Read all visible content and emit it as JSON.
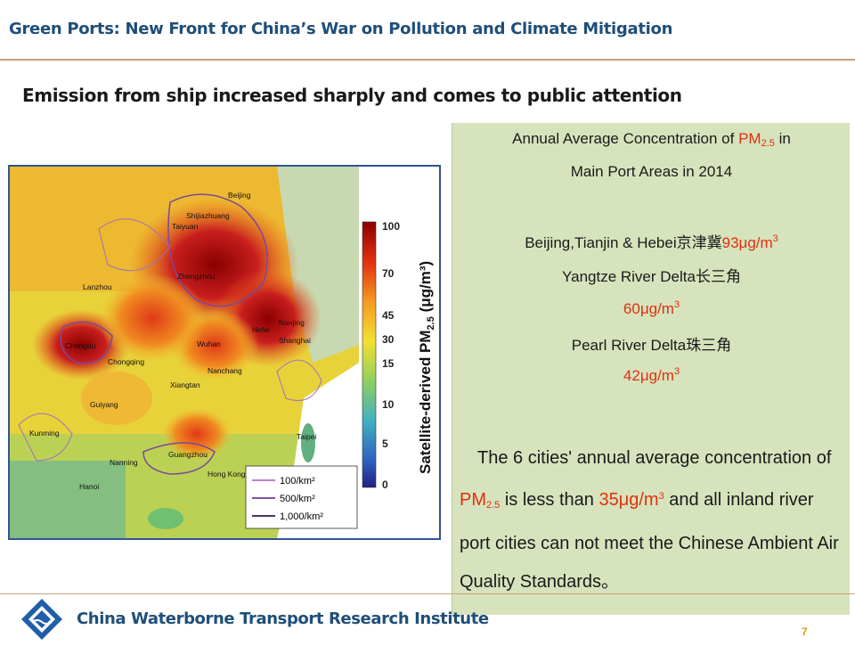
{
  "header": {
    "title": "Green Ports: New Front for China’s War on Pollution and Climate Mitigation"
  },
  "slide": {
    "heading": "Emission from ship increased sharply and comes to public attention"
  },
  "map": {
    "colorbar_ticks": [
      "100",
      "70",
      "45",
      "30",
      "15",
      "10",
      "5",
      "0"
    ],
    "colorbar_label": "Satellite-derived PM",
    "colorbar_label_sub": "2.5",
    "colorbar_label_unit": " (μg/m³)",
    "cities": [
      "Beijing",
      "Shijiazhuang",
      "Taiyuan",
      "Zhengzhou",
      "Nanjing",
      "Hefei",
      "Shanghai",
      "Wuhan",
      "Chengdu",
      "Chongqing",
      "Nanchang",
      "Xiangtan",
      "Guiyang",
      "Kunming",
      "Nanning",
      "Guangzhou",
      "Hong Kong",
      "Taipei",
      "Hanoi",
      "Lanzhou"
    ],
    "legend": [
      "100/km²",
      "500/km²",
      "1,000/km²"
    ],
    "colors": {
      "legend_line1": "#c080c0",
      "legend_line2": "#8050a0",
      "legend_line3": "#503060"
    }
  },
  "info": {
    "title_line1_pre": "Annual Average Concentration of ",
    "title_pm": "PM",
    "title_pm_sub": "2.5",
    "title_line1_post": " in",
    "title_line2": "Main Port Areas in 2014",
    "bth_label": "Beijing,Tianjin & Hebei京津冀",
    "bth_value": "93μg/m",
    "bth_sup": "3",
    "yrd_label": "Yangtze River Delta长三角",
    "yrd_value": "60μg/m",
    "yrd_sup": "3",
    "prd_label": "Pearl River Delta珠三角",
    "prd_value": "42μg/m",
    "prd_sup": "3",
    "para_1": "The 6 cities' annual average concentration of ",
    "para_pm": "PM",
    "para_pm_sub": "2.5",
    "para_2": " is less than ",
    "para_val": "35μg/m",
    "para_val_sup": "3",
    "para_3": " and all inland river port cities can not meet the Chinese Ambient Air Quality Standards。"
  },
  "footer": {
    "org": "China Waterborne Transport Research Institute",
    "page": "7"
  },
  "colors": {
    "brand_blue": "#1f4e79",
    "accent_red": "#e03010",
    "box_green": "#d6e3bc",
    "rule": "#c9a27a"
  }
}
